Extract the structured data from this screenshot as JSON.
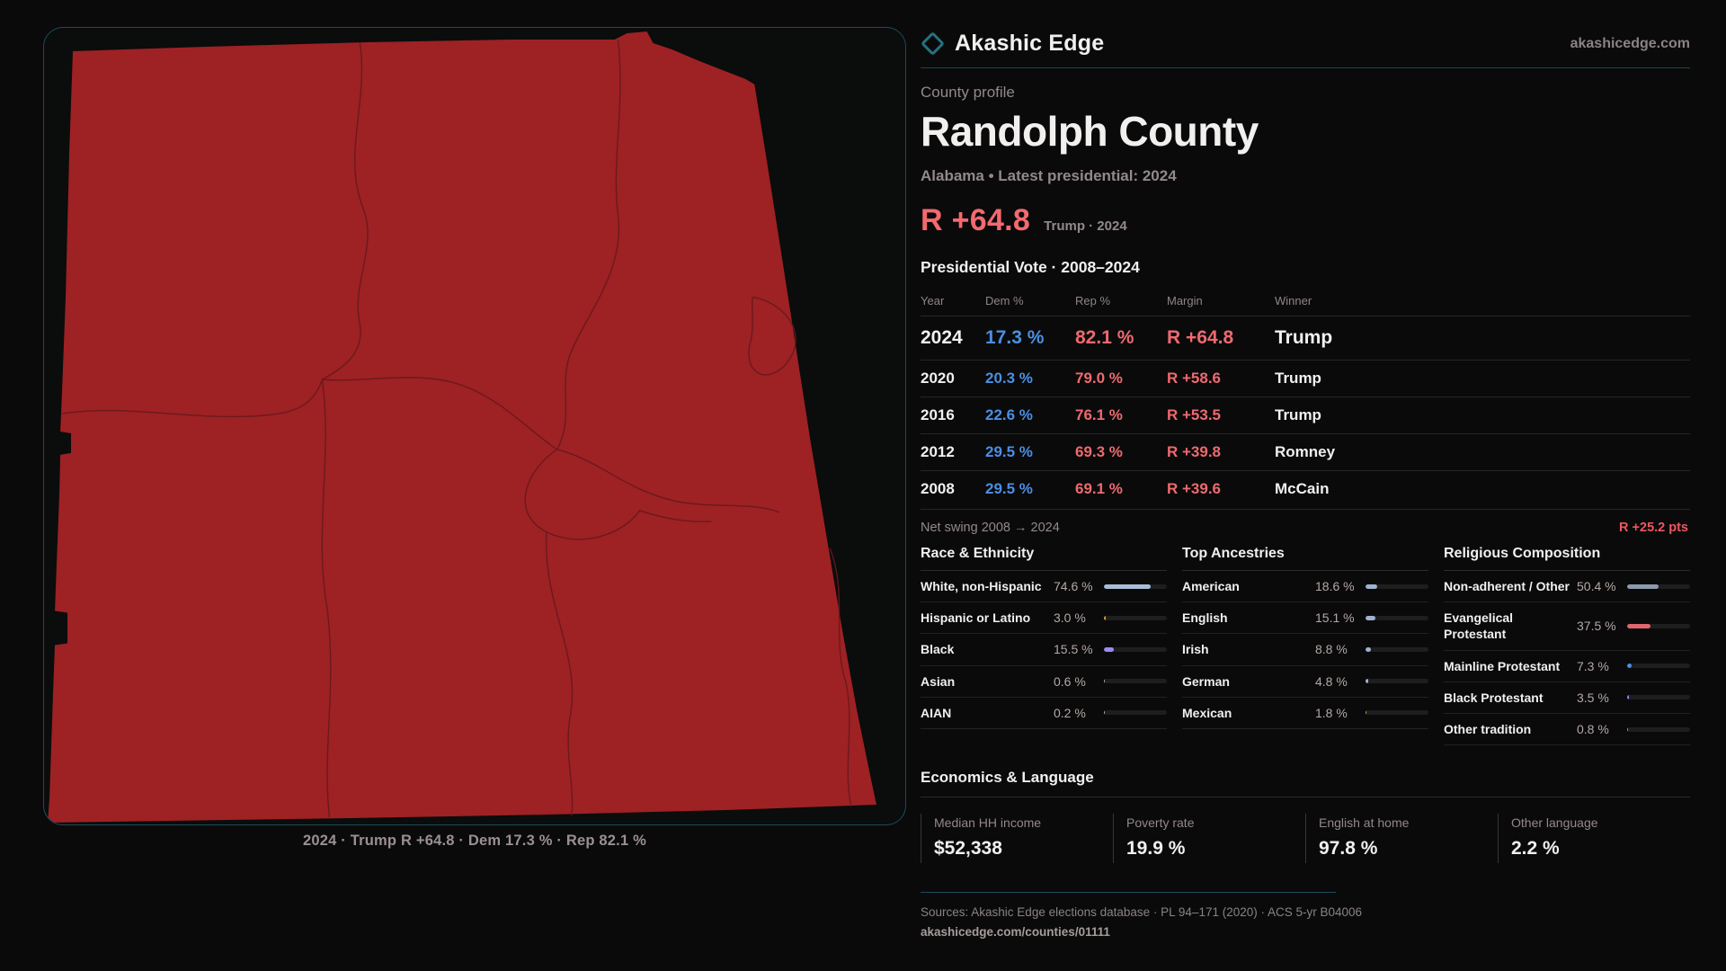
{
  "brand": {
    "name": "Akashic Edge",
    "site": "akashicedge.com"
  },
  "header": {
    "kicker": "County profile",
    "title": "Randolph County",
    "subtitle": "Alabama • Latest presidential: 2024"
  },
  "margin_callout": {
    "value": "R +64.8",
    "context": "Trump · 2024"
  },
  "elections": {
    "heading": "Presidential Vote · 2008–2024",
    "columns": {
      "year": "Year",
      "dem": "Dem %",
      "rep": "Rep %",
      "margin": "Margin",
      "winner": "Winner"
    },
    "rows": [
      {
        "year": "2024",
        "dem": "17.3 %",
        "rep": "82.1 %",
        "margin": "R +64.8",
        "winner": "Trump"
      },
      {
        "year": "2020",
        "dem": "20.3 %",
        "rep": "79.0 %",
        "margin": "R +58.6",
        "winner": "Trump"
      },
      {
        "year": "2016",
        "dem": "22.6 %",
        "rep": "76.1 %",
        "margin": "R +53.5",
        "winner": "Trump"
      },
      {
        "year": "2012",
        "dem": "29.5 %",
        "rep": "69.3 %",
        "margin": "R +39.8",
        "winner": "Romney"
      },
      {
        "year": "2008",
        "dem": "29.5 %",
        "rep": "69.1 %",
        "margin": "R +39.6",
        "winner": "McCain"
      }
    ],
    "net_swing_label": "Net swing 2008 → 2024",
    "net_swing_value": "R +25.2 pts"
  },
  "chart_data": [
    {
      "type": "table",
      "title": "Presidential Vote · 2008–2024",
      "columns": [
        "Year",
        "Dem %",
        "Rep %",
        "Margin",
        "Winner"
      ],
      "rows": [
        [
          2024,
          17.3,
          82.1,
          "R +64.8",
          "Trump"
        ],
        [
          2020,
          20.3,
          79.0,
          "R +58.6",
          "Trump"
        ],
        [
          2016,
          22.6,
          76.1,
          "R +53.5",
          "Trump"
        ],
        [
          2012,
          29.5,
          69.3,
          "R +39.8",
          "Romney"
        ],
        [
          2008,
          29.5,
          69.1,
          "R +39.6",
          "McCain"
        ]
      ]
    },
    {
      "type": "bar",
      "title": "Race & Ethnicity",
      "categories": [
        "White, non-Hispanic",
        "Hispanic or Latino",
        "Black",
        "Asian",
        "AIAN"
      ],
      "values": [
        74.6,
        3.0,
        15.5,
        0.6,
        0.2
      ],
      "xlim": [
        0,
        100
      ]
    },
    {
      "type": "bar",
      "title": "Top Ancestries",
      "categories": [
        "American",
        "English",
        "Irish",
        "German",
        "Mexican"
      ],
      "values": [
        18.6,
        15.1,
        8.8,
        4.8,
        1.8
      ],
      "xlim": [
        0,
        100
      ]
    },
    {
      "type": "bar",
      "title": "Religious Composition",
      "categories": [
        "Non-adherent / Other",
        "Evangelical Protestant",
        "Mainline Protestant",
        "Black Protestant",
        "Other tradition"
      ],
      "values": [
        50.4,
        37.5,
        7.3,
        3.5,
        0.8
      ],
      "xlim": [
        0,
        100
      ]
    }
  ],
  "demographics": {
    "race": {
      "heading": "Race & Ethnicity",
      "rows": [
        {
          "label": "White, non-Hispanic",
          "value": "74.6 %",
          "pct": 74.6,
          "color": "#a9bcd6"
        },
        {
          "label": "Hispanic or Latino",
          "value": "3.0 %",
          "pct": 3.0,
          "color": "#e09b2d"
        },
        {
          "label": "Black",
          "value": "15.5 %",
          "pct": 15.5,
          "color": "#988df2"
        },
        {
          "label": "Asian",
          "value": "0.6 %",
          "pct": 0.6,
          "color": "#9db3cf"
        },
        {
          "label": "AIAN",
          "value": "0.2 %",
          "pct": 0.2,
          "color": "#9db3cf"
        }
      ]
    },
    "ancestry": {
      "heading": "Top Ancestries",
      "rows": [
        {
          "label": "American",
          "value": "18.6 %",
          "pct": 18.6,
          "color": "#9db3cf"
        },
        {
          "label": "English",
          "value": "15.1 %",
          "pct": 15.1,
          "color": "#9db3cf"
        },
        {
          "label": "Irish",
          "value": "8.8 %",
          "pct": 8.8,
          "color": "#9db3cf"
        },
        {
          "label": "German",
          "value": "4.8 %",
          "pct": 4.8,
          "color": "#9db3cf"
        },
        {
          "label": "Mexican",
          "value": "1.8 %",
          "pct": 1.8,
          "color": "#e09b2d"
        }
      ]
    },
    "religion": {
      "heading": "Religious Composition",
      "rows": [
        {
          "label": "Non-adherent / Other",
          "value": "50.4 %",
          "pct": 50.4,
          "color": "#8e99ad"
        },
        {
          "label": "Evangelical Protestant",
          "value": "37.5 %",
          "pct": 37.5,
          "color": "#e0676d"
        },
        {
          "label": "Mainline Protestant",
          "value": "7.3 %",
          "pct": 7.3,
          "color": "#4b8fe2"
        },
        {
          "label": "Black Protestant",
          "value": "3.5 %",
          "pct": 3.5,
          "color": "#8f83ef"
        },
        {
          "label": "Other tradition",
          "value": "0.8 %",
          "pct": 0.8,
          "color": "#9a9a9a"
        }
      ]
    }
  },
  "economics": {
    "heading": "Economics & Language",
    "stats": [
      {
        "label": "Median HH income",
        "value": "$52,338"
      },
      {
        "label": "Poverty rate",
        "value": "19.9 %"
      },
      {
        "label": "English at home",
        "value": "97.8 %"
      },
      {
        "label": "Other language",
        "value": "2.2 %"
      }
    ]
  },
  "map": {
    "caption": "2024 · Trump R +64.8 · Dem 17.3 % · Rep 82.1 %",
    "county_fill": "#9e2124",
    "boundary_stroke": "#641a1d",
    "frame_border": "#1d4d57"
  },
  "footer": {
    "sources": "Sources: Akashic Edge elections database · PL 94–171 (2020) · ACS 5-yr B04006",
    "permalink": "akashicedge.com/counties/01111"
  }
}
